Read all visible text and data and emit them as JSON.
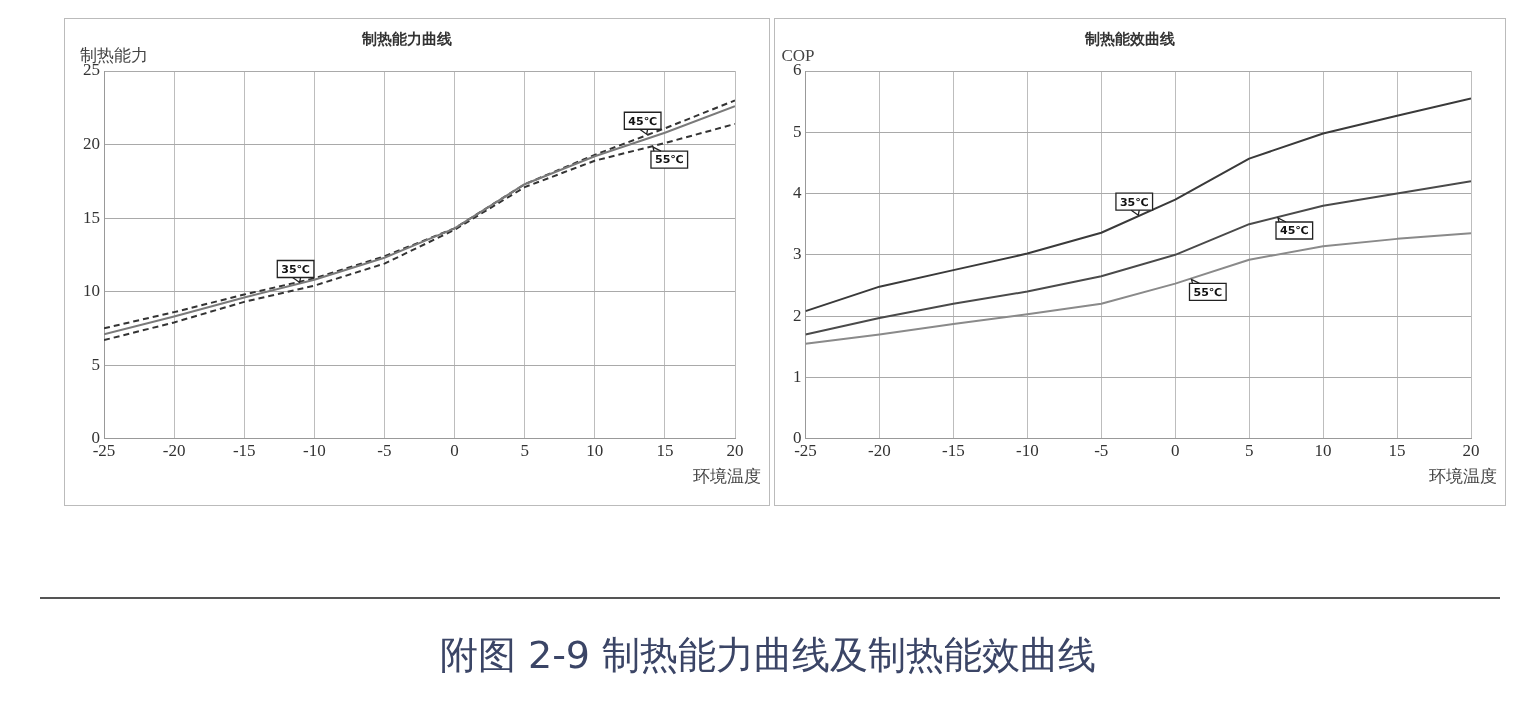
{
  "chart_data": [
    {
      "type": "line",
      "title": "制热能力曲线",
      "xlabel": "环境温度",
      "ylabel": "制热能力",
      "x": [
        -25,
        -20,
        -15,
        -10,
        -5,
        0,
        5,
        10,
        15,
        20
      ],
      "series": [
        {
          "name": "35℃",
          "color": "#7a7a7a",
          "line_style": "solid",
          "values": [
            7.1,
            8.3,
            9.6,
            10.8,
            12.3,
            14.3,
            17.3,
            19.2,
            20.8,
            22.6
          ]
        },
        {
          "name": "45℃",
          "color": "#333333",
          "line_style": "dashed",
          "values": [
            7.5,
            8.6,
            9.8,
            10.9,
            12.4,
            14.3,
            17.3,
            19.3,
            21.1,
            23.0
          ]
        },
        {
          "name": "55℃",
          "color": "#333333",
          "line_style": "dashed",
          "values": [
            6.7,
            7.9,
            9.3,
            10.4,
            11.9,
            14.2,
            17.1,
            18.9,
            20.1,
            21.4
          ]
        }
      ],
      "xlim": [
        -25,
        20
      ],
      "xticks": [
        -25,
        -20,
        -15,
        -10,
        -5,
        0,
        5,
        10,
        15,
        20
      ],
      "ylim": [
        0,
        25
      ],
      "yticks": [
        0,
        5,
        10,
        15,
        20,
        25
      ],
      "grid": true,
      "legend": false,
      "marker": "none"
    },
    {
      "type": "line",
      "title": "制热能效曲线",
      "xlabel": "环境温度",
      "ylabel": "COP",
      "x": [
        -25,
        -20,
        -15,
        -10,
        -5,
        0,
        5,
        10,
        15,
        20
      ],
      "series": [
        {
          "name": "35℃",
          "color": "#3a3a3a",
          "line_style": "solid",
          "values": [
            2.08,
            2.48,
            2.75,
            3.02,
            3.36,
            3.9,
            4.57,
            4.98,
            5.27,
            5.55
          ]
        },
        {
          "name": "45℃",
          "color": "#4a4a4a",
          "line_style": "solid",
          "values": [
            1.7,
            1.97,
            2.2,
            2.4,
            2.65,
            3.0,
            3.5,
            3.8,
            4.0,
            4.2
          ]
        },
        {
          "name": "55℃",
          "color": "#8a8a8a",
          "line_style": "solid",
          "values": [
            1.55,
            1.7,
            1.87,
            2.03,
            2.2,
            2.53,
            2.92,
            3.14,
            3.26,
            3.35
          ]
        }
      ],
      "xlim": [
        -25,
        20
      ],
      "xticks": [
        -25,
        -20,
        -15,
        -10,
        -5,
        0,
        5,
        10,
        15,
        20
      ],
      "ylim": [
        0,
        6
      ],
      "yticks": [
        0,
        1,
        2,
        3,
        4,
        5,
        6
      ],
      "grid": true,
      "legend": false,
      "marker": "none",
      "annotations": [
        "附图 2-9 制热能力曲线及制热能效曲线"
      ]
    }
  ]
}
